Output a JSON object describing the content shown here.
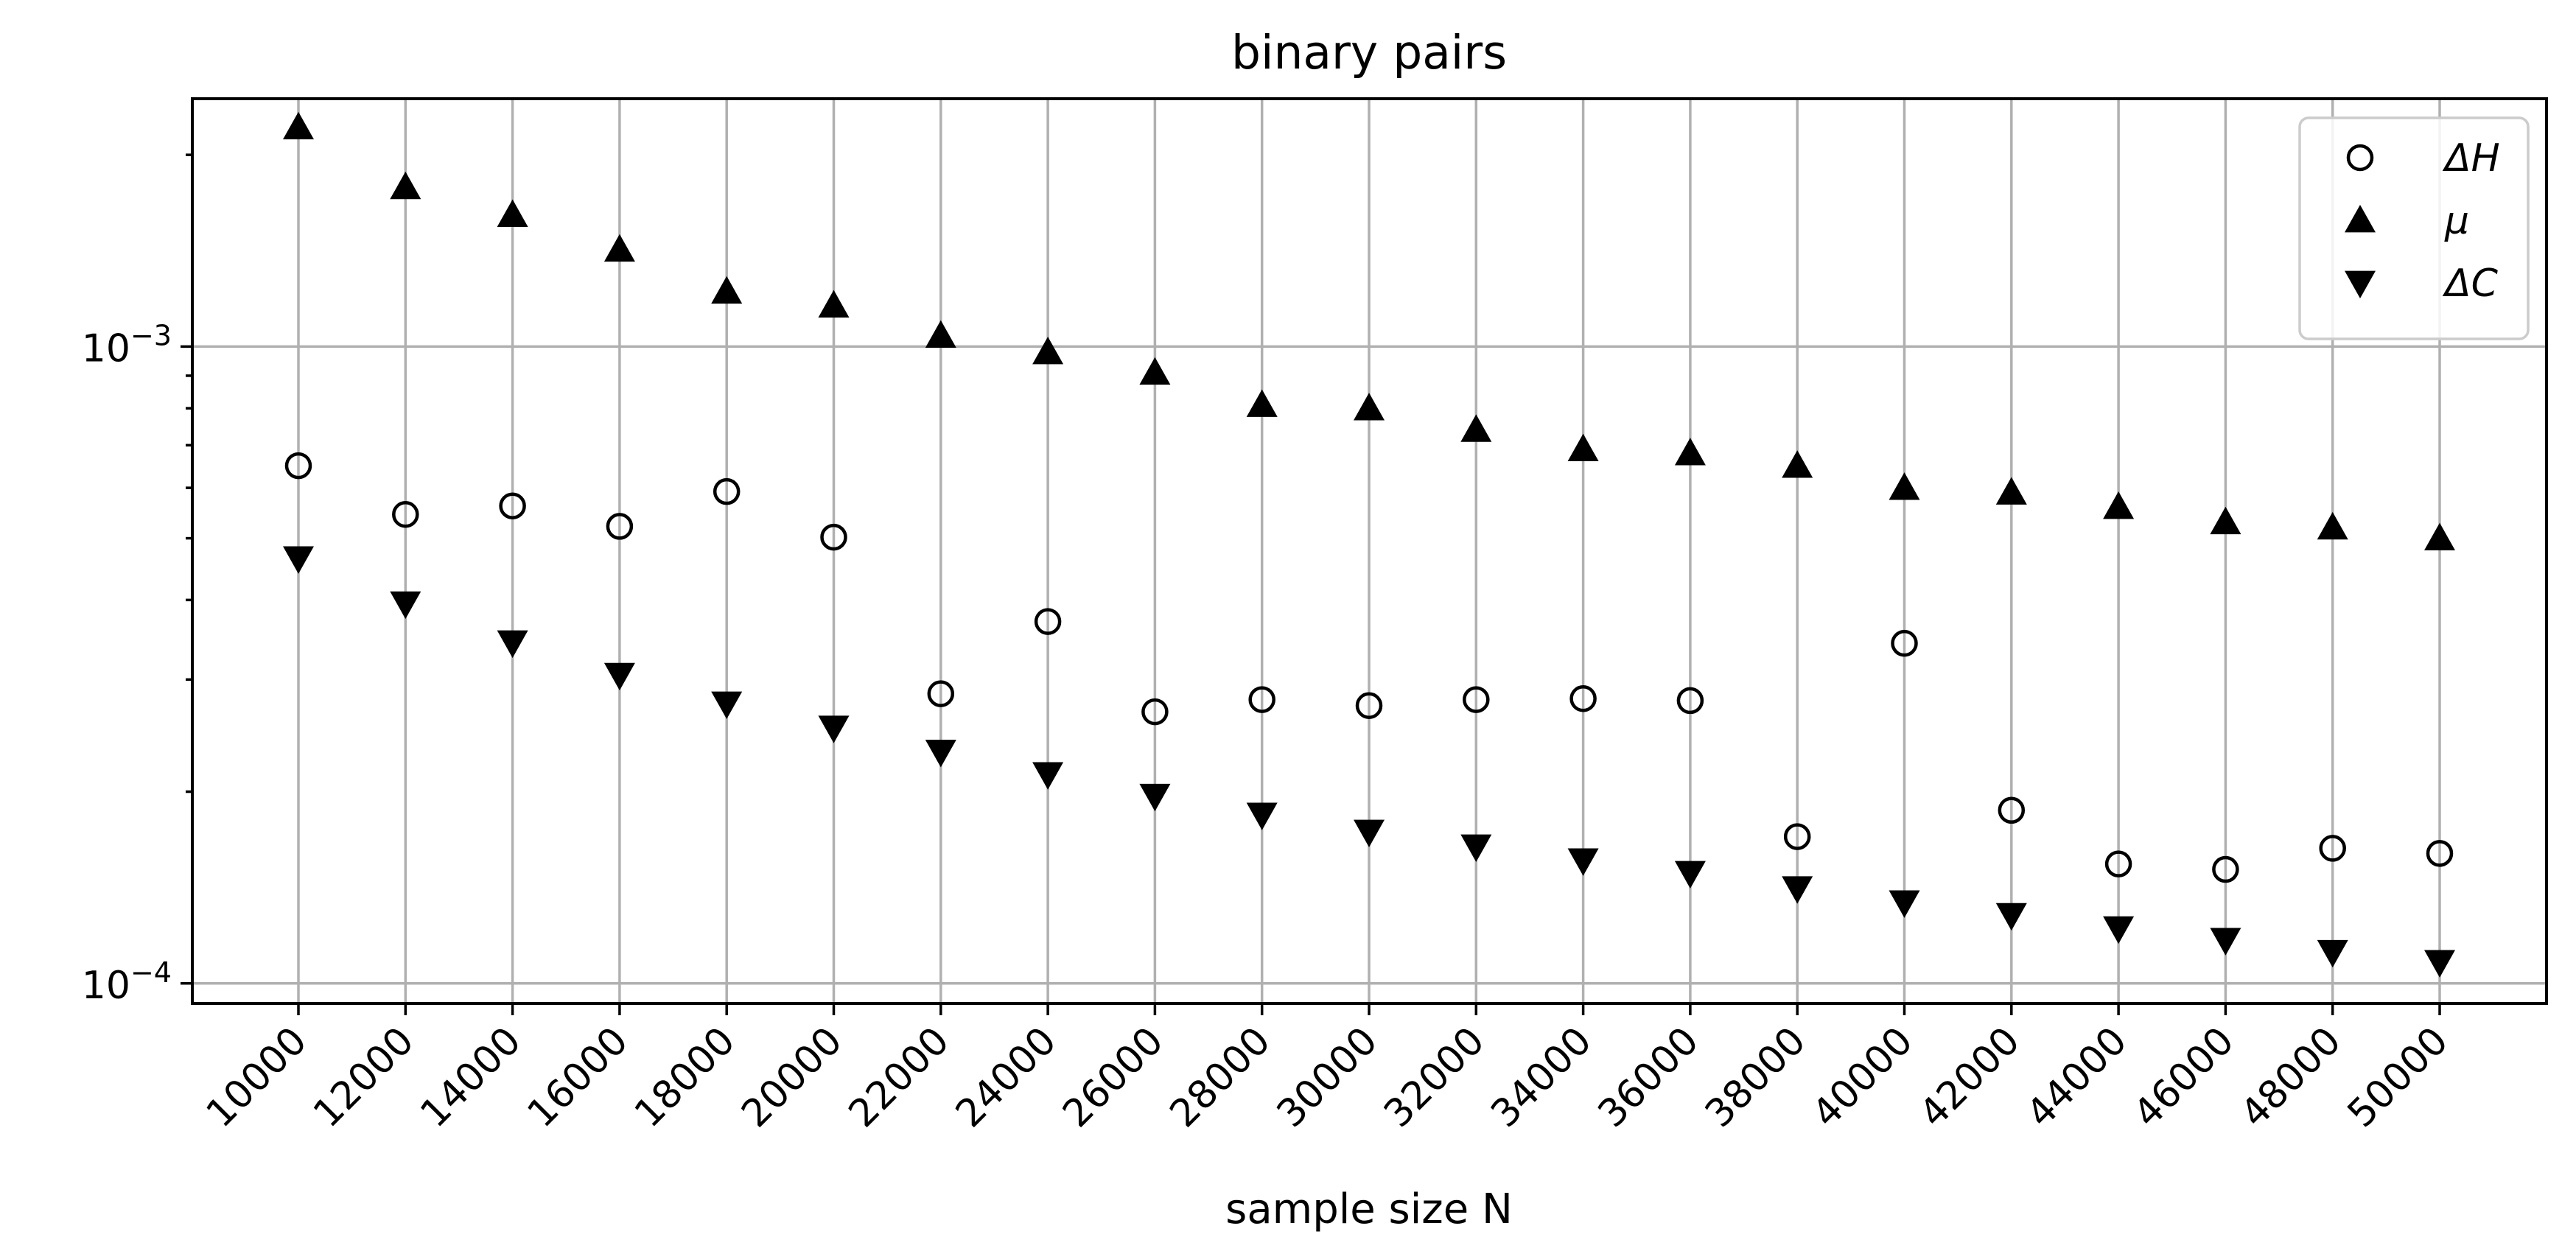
{
  "chart_data": {
    "type": "scatter",
    "title": "binary pairs",
    "xlabel": "sample size N",
    "ylabel": "",
    "yscale": "log",
    "ylim": [
      9.3e-05,
      0.00245
    ],
    "grid": true,
    "legend_position": "top-right",
    "x": [
      10000,
      12000,
      14000,
      16000,
      18000,
      20000,
      22000,
      24000,
      26000,
      28000,
      30000,
      32000,
      34000,
      36000,
      38000,
      40000,
      42000,
      44000,
      46000,
      48000,
      50000
    ],
    "x_tick_labels": [
      "10000",
      "12000",
      "14000",
      "16000",
      "18000",
      "20000",
      "22000",
      "24000",
      "26000",
      "28000",
      "30000",
      "32000",
      "34000",
      "36000",
      "38000",
      "40000",
      "42000",
      "44000",
      "46000",
      "48000",
      "50000"
    ],
    "y_tick_labels": [
      {
        "value": 0.0001,
        "base": "10",
        "exp": "−4"
      },
      {
        "value": 0.001,
        "base": "10",
        "exp": "−3"
      }
    ],
    "series": [
      {
        "name": "ΔH",
        "marker": "circle-open",
        "color": "#000000",
        "values": [
          0.00065,
          0.000545,
          0.000562,
          0.000522,
          0.000592,
          0.000502,
          0.000285,
          0.00037,
          0.000267,
          0.000279,
          0.000273,
          0.000279,
          0.00028,
          0.000278,
          0.00017,
          0.000342,
          0.000187,
          0.000154,
          0.000151,
          0.000163,
          0.00016
        ]
      },
      {
        "name": "μ",
        "marker": "triangle-up",
        "color": "#000000",
        "values": [
          0.00221,
          0.00178,
          0.00161,
          0.00142,
          0.00122,
          0.00116,
          0.00104,
          0.00098,
          0.00091,
          0.00081,
          0.0008,
          0.00074,
          0.00069,
          0.00068,
          0.00065,
          0.0006,
          0.00059,
          0.00056,
          0.00053,
          0.00052,
          0.0005
        ]
      },
      {
        "name": "ΔC",
        "marker": "triangle-down",
        "color": "#000000",
        "values": [
          0.000465,
          0.000395,
          0.000343,
          0.000305,
          0.000275,
          0.000252,
          0.000231,
          0.000213,
          0.000197,
          0.000184,
          0.000173,
          0.000164,
          0.000156,
          0.000149,
          0.000141,
          0.000134,
          0.000128,
          0.000122,
          0.000117,
          0.000112,
          0.000108
        ]
      }
    ]
  }
}
